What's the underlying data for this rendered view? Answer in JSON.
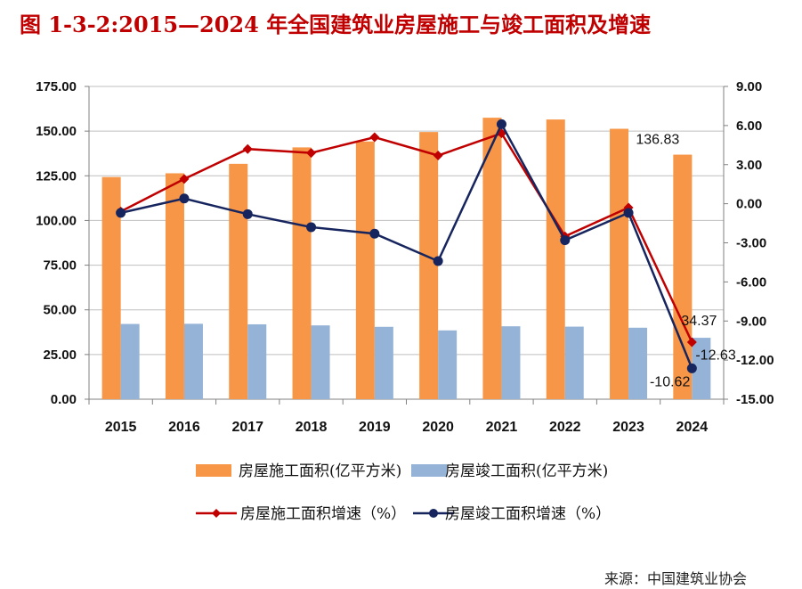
{
  "title": "图 1-3-2:2015—2024 年全国建筑业房屋施工与竣工面积及增速",
  "source": "来源：中国建筑业协会",
  "colors": {
    "construction_bar": "#F79646",
    "completion_bar": "#95B3D7",
    "construction_growth": "#C00000",
    "completion_growth": "#17255E",
    "title": "#C00000"
  },
  "chart_data": {
    "type": "bar",
    "categories": [
      "2015",
      "2016",
      "2017",
      "2018",
      "2019",
      "2020",
      "2021",
      "2022",
      "2023",
      "2024"
    ],
    "series": [
      {
        "name": "房屋施工面积(亿平方米)",
        "type": "bar",
        "axis": "left",
        "values": [
          124.3,
          126.4,
          131.7,
          140.9,
          144.2,
          149.5,
          157.5,
          156.5,
          151.3,
          136.83
        ]
      },
      {
        "name": "房屋竣工面积(亿平方米)",
        "type": "bar",
        "axis": "left",
        "values": [
          42.1,
          42.2,
          41.9,
          41.3,
          40.5,
          38.5,
          40.8,
          40.6,
          40.0,
          34.37
        ]
      },
      {
        "name": "房屋施工面积增速（%）",
        "type": "line",
        "axis": "right",
        "values": [
          -0.6,
          1.9,
          4.2,
          3.9,
          5.1,
          3.7,
          5.4,
          -2.5,
          -0.3,
          -10.62
        ]
      },
      {
        "name": "房屋竣工面积增速（%）",
        "type": "line",
        "axis": "right",
        "values": [
          -0.7,
          0.4,
          -0.8,
          -1.8,
          -2.3,
          -4.4,
          6.1,
          -2.8,
          -0.7,
          -12.63
        ]
      }
    ],
    "y_left": {
      "ylim": [
        0,
        175
      ],
      "ticks": [
        "0.00",
        "25.00",
        "50.00",
        "75.00",
        "100.00",
        "125.00",
        "150.00",
        "175.00"
      ]
    },
    "y_right": {
      "ylim": [
        -15,
        9
      ],
      "ticks": [
        "-15.00",
        "-12.00",
        "-9.00",
        "-6.00",
        "-3.00",
        "0.00",
        "3.00",
        "6.00",
        "9.00"
      ]
    },
    "data_labels": [
      {
        "series": 0,
        "index": 9,
        "text": "136.83"
      },
      {
        "series": 1,
        "index": 9,
        "text": "34.37"
      },
      {
        "series": 2,
        "index": 9,
        "text": "-10.62"
      },
      {
        "series": 3,
        "index": 9,
        "text": "-12.63"
      }
    ],
    "grid": true,
    "legend": "bottom"
  }
}
